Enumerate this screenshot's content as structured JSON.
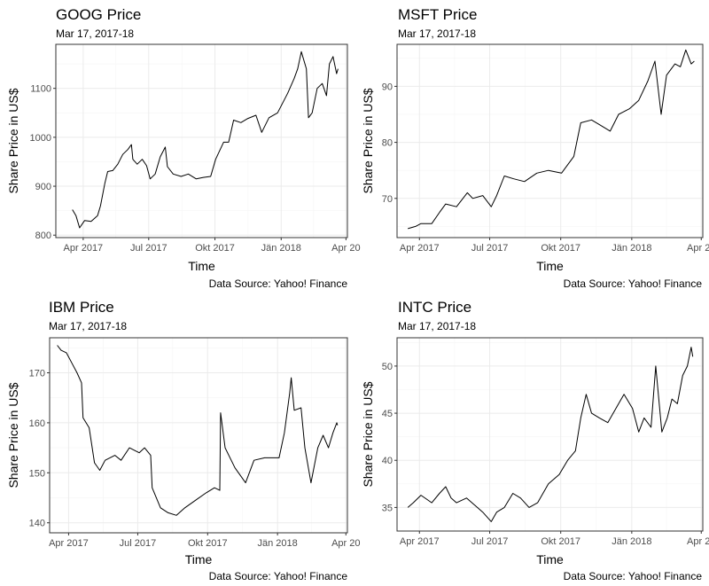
{
  "chart_data": [
    {
      "type": "line",
      "title": "GOOG Price",
      "subtitle": "Mar 17, 2017-18",
      "xlabel": "Time",
      "ylabel": "Share Price in US$",
      "caption": "Data Source: Yahoo! Finance",
      "xlim": [
        "2017-02-22",
        "2018-04-03"
      ],
      "ylim": [
        795,
        1190
      ],
      "x_ticks": [
        {
          "date": "2017-04-01",
          "label": "Apr 2017"
        },
        {
          "date": "2017-07-01",
          "label": "Jul 2017"
        },
        {
          "date": "2017-10-01",
          "label": "Okt 2017"
        },
        {
          "date": "2018-01-01",
          "label": "Jän 2018"
        },
        {
          "date": "2018-04-01",
          "label": "Apr 20"
        }
      ],
      "y_ticks": [
        800,
        900,
        1000,
        1100
      ],
      "grid": true,
      "series": [
        {
          "x": [
            "2017-03-17",
            "2017-03-22",
            "2017-03-27",
            "2017-04-03",
            "2017-04-12",
            "2017-04-21",
            "2017-04-25",
            "2017-05-01",
            "2017-05-05",
            "2017-05-12",
            "2017-05-19",
            "2017-05-26",
            "2017-06-02",
            "2017-06-07",
            "2017-06-09",
            "2017-06-15",
            "2017-06-22",
            "2017-06-28",
            "2017-07-03",
            "2017-07-10",
            "2017-07-17",
            "2017-07-24",
            "2017-07-27",
            "2017-08-04",
            "2017-08-15",
            "2017-08-25",
            "2017-09-05",
            "2017-09-15",
            "2017-09-25",
            "2017-10-02",
            "2017-10-13",
            "2017-10-20",
            "2017-10-27",
            "2017-11-06",
            "2017-11-15",
            "2017-11-27",
            "2017-12-05",
            "2017-12-15",
            "2017-12-27",
            "2018-01-10",
            "2018-01-19",
            "2018-01-24",
            "2018-01-29",
            "2018-02-05",
            "2018-02-08",
            "2018-02-13",
            "2018-02-20",
            "2018-02-27",
            "2018-03-05",
            "2018-03-09",
            "2018-03-14",
            "2018-03-19",
            "2018-03-21"
          ],
          "values": [
            852,
            840,
            815,
            830,
            828,
            840,
            860,
            905,
            930,
            932,
            945,
            965,
            975,
            985,
            955,
            945,
            955,
            942,
            915,
            925,
            960,
            980,
            940,
            925,
            920,
            925,
            915,
            918,
            920,
            955,
            990,
            990,
            1035,
            1030,
            1038,
            1045,
            1010,
            1040,
            1050,
            1090,
            1120,
            1140,
            1175,
            1140,
            1040,
            1050,
            1100,
            1110,
            1085,
            1150,
            1165,
            1130,
            1140
          ]
        }
      ]
    },
    {
      "type": "line",
      "title": "MSFT Price",
      "subtitle": "Mar 17, 2017-18",
      "xlabel": "Time",
      "ylabel": "Share Price in US$",
      "caption": "Data Source: Yahoo! Finance",
      "xlim": [
        "2017-03-03",
        "2018-04-03"
      ],
      "ylim": [
        63,
        97.5
      ],
      "x_ticks": [
        {
          "date": "2017-04-01",
          "label": "Apr 2017"
        },
        {
          "date": "2017-07-01",
          "label": "Jul 2017"
        },
        {
          "date": "2017-10-01",
          "label": "Okt 2017"
        },
        {
          "date": "2018-01-01",
          "label": "Jän 2018"
        },
        {
          "date": "2018-04-01",
          "label": "Apr 20"
        }
      ],
      "y_ticks": [
        70,
        80,
        90
      ],
      "grid": true,
      "series": [
        {
          "x": [
            "2017-03-17",
            "2017-03-27",
            "2017-04-03",
            "2017-04-17",
            "2017-04-27",
            "2017-05-05",
            "2017-05-19",
            "2017-06-02",
            "2017-06-09",
            "2017-06-22",
            "2017-07-03",
            "2017-07-10",
            "2017-07-20",
            "2017-08-01",
            "2017-08-15",
            "2017-08-31",
            "2017-09-15",
            "2017-10-02",
            "2017-10-18",
            "2017-10-27",
            "2017-11-10",
            "2017-11-22",
            "2017-12-04",
            "2017-12-15",
            "2017-12-29",
            "2018-01-10",
            "2018-01-22",
            "2018-01-31",
            "2018-02-08",
            "2018-02-15",
            "2018-02-26",
            "2018-03-05",
            "2018-03-12",
            "2018-03-19",
            "2018-03-23"
          ],
          "values": [
            64.6,
            65,
            65.5,
            65.5,
            67.5,
            69,
            68.5,
            71,
            70,
            70.5,
            68.5,
            70.5,
            74,
            73.5,
            73,
            74.5,
            75,
            74.5,
            77.5,
            83.5,
            84,
            83,
            82,
            85,
            86,
            87.5,
            91,
            94.5,
            85,
            92,
            94,
            93.5,
            96.5,
            94,
            94.5
          ]
        }
      ]
    },
    {
      "type": "line",
      "title": "IBM Price",
      "subtitle": "Mar 17, 2017-18",
      "xlabel": "Time",
      "ylabel": "Share Price in US$",
      "caption": "Data Source: Yahoo! Finance",
      "xlim": [
        "2017-03-07",
        "2018-04-03"
      ],
      "ylim": [
        138,
        177
      ],
      "x_ticks": [
        {
          "date": "2017-04-01",
          "label": "Apr 2017"
        },
        {
          "date": "2017-07-01",
          "label": "Jul 2017"
        },
        {
          "date": "2017-10-01",
          "label": "Okt 2017"
        },
        {
          "date": "2018-01-01",
          "label": "Jän 2018"
        },
        {
          "date": "2018-04-01",
          "label": "Apr 20"
        }
      ],
      "y_ticks": [
        140,
        150,
        160,
        170
      ],
      "grid": true,
      "series": [
        {
          "x": [
            "2017-03-17",
            "2017-03-22",
            "2017-03-29",
            "2017-04-05",
            "2017-04-12",
            "2017-04-18",
            "2017-04-20",
            "2017-04-28",
            "2017-05-05",
            "2017-05-12",
            "2017-05-19",
            "2017-06-01",
            "2017-06-09",
            "2017-06-20",
            "2017-07-03",
            "2017-07-10",
            "2017-07-18",
            "2017-07-20",
            "2017-07-31",
            "2017-08-10",
            "2017-08-21",
            "2017-09-01",
            "2017-09-15",
            "2017-09-29",
            "2017-10-10",
            "2017-10-17",
            "2017-10-18",
            "2017-10-24",
            "2017-11-06",
            "2017-11-20",
            "2017-12-01",
            "2017-12-15",
            "2018-01-03",
            "2018-01-10",
            "2018-01-17",
            "2018-01-19",
            "2018-01-23",
            "2018-02-01",
            "2018-02-06",
            "2018-02-14",
            "2018-02-23",
            "2018-03-02",
            "2018-03-09",
            "2018-03-15",
            "2018-03-20",
            "2018-03-21"
          ],
          "values": [
            175.5,
            174.5,
            174,
            172,
            170,
            168,
            161,
            159,
            152,
            150.5,
            152.5,
            153.5,
            152.5,
            155,
            154,
            155,
            153.5,
            147,
            143,
            142,
            141.5,
            143,
            144.5,
            146,
            147,
            146.5,
            162,
            155,
            151,
            148,
            152.5,
            153,
            153,
            158,
            166,
            169,
            162.5,
            163,
            155,
            148,
            155,
            157.5,
            155,
            158,
            160,
            159.5
          ]
        }
      ]
    },
    {
      "type": "line",
      "title": "INTC Price",
      "subtitle": "Mar 17, 2017-18",
      "xlabel": "Time",
      "ylabel": "Share Price in US$",
      "caption": "Data Source: Yahoo! Finance",
      "xlim": [
        "2017-03-03",
        "2018-04-03"
      ],
      "ylim": [
        32.5,
        53
      ],
      "x_ticks": [
        {
          "date": "2017-04-01",
          "label": "Apr 2017"
        },
        {
          "date": "2017-07-01",
          "label": "Jul 2017"
        },
        {
          "date": "2017-10-01",
          "label": "Okt 2017"
        },
        {
          "date": "2018-01-01",
          "label": "Jän 2018"
        },
        {
          "date": "2018-04-01",
          "label": "Apr 20"
        }
      ],
      "y_ticks": [
        35,
        40,
        45,
        50
      ],
      "grid": true,
      "series": [
        {
          "x": [
            "2017-03-17",
            "2017-03-24",
            "2017-04-03",
            "2017-04-17",
            "2017-04-27",
            "2017-05-05",
            "2017-05-12",
            "2017-05-19",
            "2017-06-01",
            "2017-06-15",
            "2017-06-22",
            "2017-07-03",
            "2017-07-10",
            "2017-07-20",
            "2017-07-31",
            "2017-08-10",
            "2017-08-21",
            "2017-09-01",
            "2017-09-15",
            "2017-09-29",
            "2017-10-10",
            "2017-10-20",
            "2017-10-27",
            "2017-11-03",
            "2017-11-10",
            "2017-11-20",
            "2017-12-01",
            "2017-12-15",
            "2017-12-22",
            "2018-01-02",
            "2018-01-10",
            "2018-01-17",
            "2018-01-26",
            "2018-02-01",
            "2018-02-09",
            "2018-02-16",
            "2018-02-22",
            "2018-03-01",
            "2018-03-08",
            "2018-03-14",
            "2018-03-19",
            "2018-03-21"
          ],
          "values": [
            35,
            35.5,
            36.3,
            35.5,
            36.5,
            37.2,
            36,
            35.5,
            36,
            35,
            34.5,
            33.5,
            34.5,
            35,
            36.5,
            36,
            35,
            35.5,
            37.5,
            38.5,
            40,
            41,
            44.5,
            47,
            45,
            44.5,
            44,
            46,
            47,
            45.5,
            43,
            44.5,
            43.5,
            50,
            43,
            44.5,
            46.5,
            46,
            49,
            50,
            52,
            51
          ]
        }
      ]
    }
  ]
}
